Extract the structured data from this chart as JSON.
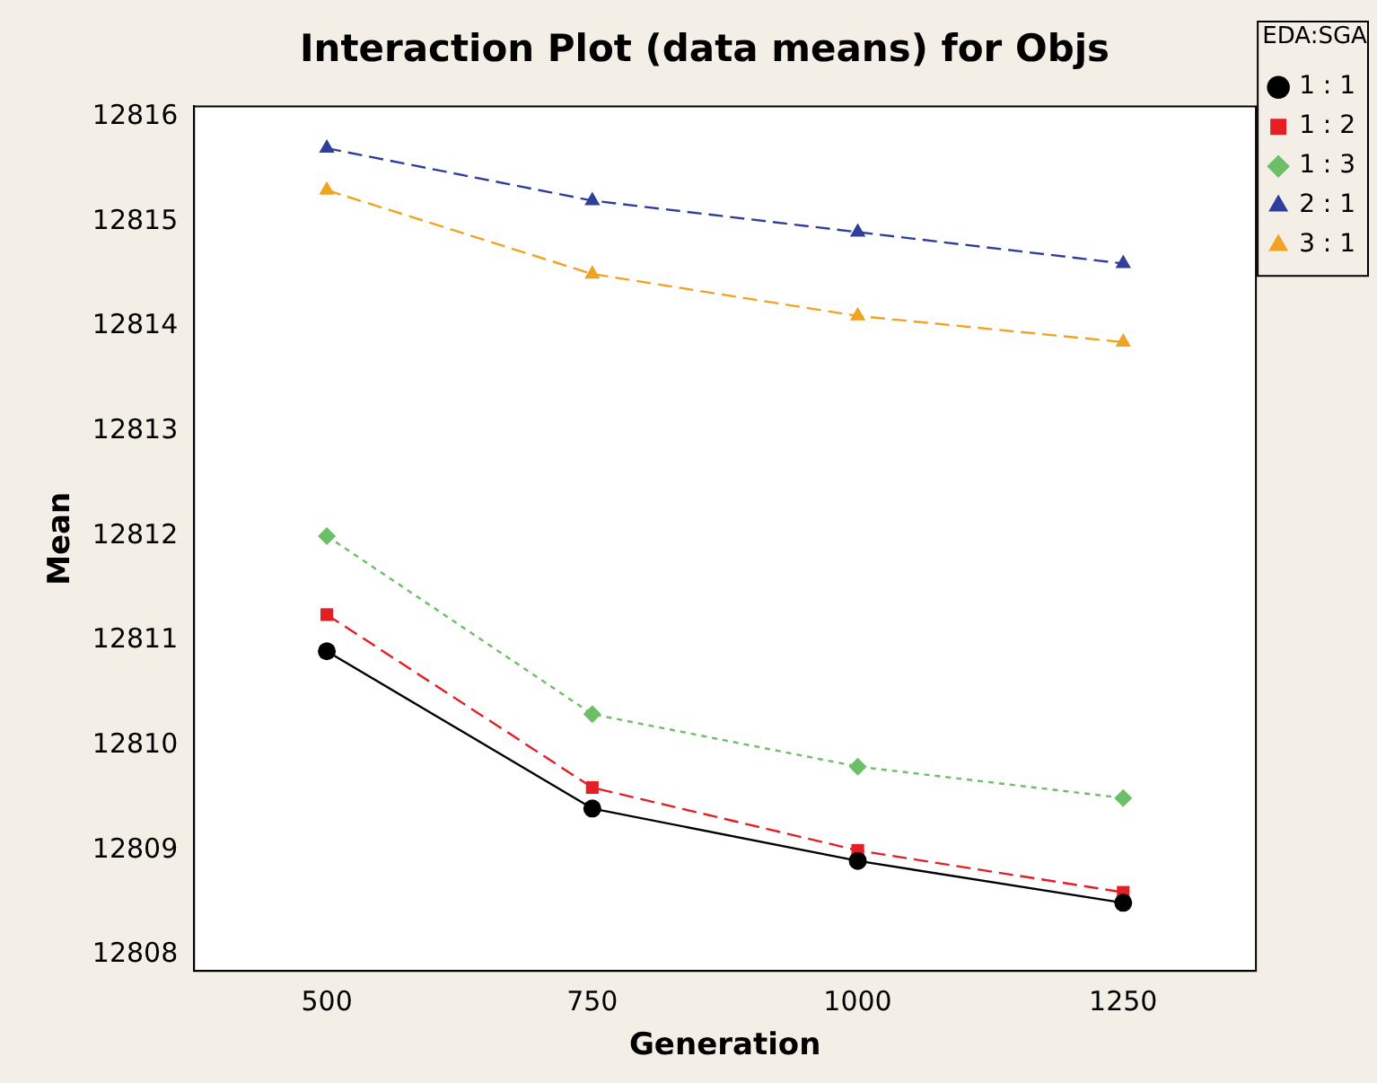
{
  "chart_data": {
    "type": "line",
    "title": "Interaction Plot (data means) for Objs",
    "xlabel": "Generation",
    "ylabel": "Mean",
    "legend_title": "EDA:SGA",
    "legend": "top right",
    "grid": false,
    "x": [
      500,
      750,
      1000,
      1250
    ],
    "xlim": [
      375,
      1375
    ],
    "xticks": [
      500,
      750,
      1000,
      1250
    ],
    "ylim": [
      12807.85,
      12816.1
    ],
    "yticks": [
      12808,
      12809,
      12810,
      12811,
      12812,
      12813,
      12814,
      12815,
      12816
    ],
    "series": [
      {
        "name": "1 : 1",
        "color": "#000000",
        "marker": "circle",
        "line_style": "solid",
        "values": [
          12810.9,
          12809.4,
          12808.9,
          12808.5
        ]
      },
      {
        "name": "1 : 2",
        "color": "#e31e24",
        "marker": "square",
        "line_style": "dashed",
        "values": [
          12811.25,
          12809.6,
          12809.0,
          12808.6
        ]
      },
      {
        "name": "1 : 3",
        "color": "#6cbf66",
        "marker": "diamond",
        "line_style": "dotted",
        "values": [
          12812.0,
          12810.3,
          12809.8,
          12809.5
        ]
      },
      {
        "name": "2 : 1",
        "color": "#2e3e9c",
        "marker": "triangle",
        "line_style": "dashed",
        "values": [
          12815.7,
          12815.2,
          12814.9,
          12814.6
        ]
      },
      {
        "name": "3 : 1",
        "color": "#f0a323",
        "marker": "triangle",
        "line_style": "dashed",
        "values": [
          12815.3,
          12814.5,
          12814.1,
          12813.85
        ]
      }
    ]
  }
}
